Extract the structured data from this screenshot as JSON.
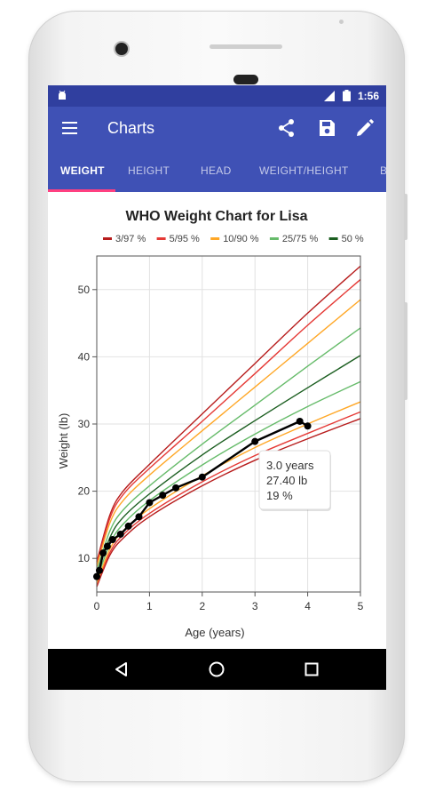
{
  "statusbar": {
    "time": "1:56"
  },
  "appbar": {
    "title": "Charts"
  },
  "tabs": [
    {
      "label": "WEIGHT",
      "active": true
    },
    {
      "label": "HEIGHT",
      "active": false
    },
    {
      "label": "HEAD",
      "active": false
    },
    {
      "label": "WEIGHT/HEIGHT",
      "active": false
    },
    {
      "label": "B",
      "active": false
    }
  ],
  "icons": {
    "menu": "menu-icon",
    "share": "share-icon",
    "save": "save-icon",
    "edit": "edit-icon",
    "back": "back-icon",
    "home": "home-icon",
    "recents": "recents-icon"
  },
  "colors": {
    "statusbar": "#303F9F",
    "appbar": "#3F51B5",
    "accent": "#FF4081",
    "p3_97": "#b71c1c",
    "p5_95": "#e53935",
    "p10_90": "#ffa726",
    "p25_75": "#66bb6a",
    "p50": "#1b5e20"
  },
  "chart_data": {
    "type": "line",
    "title": "WHO Weight Chart for Lisa",
    "xlabel": "Age (years)",
    "ylabel": "Weight (lb)",
    "xlim": [
      0,
      5
    ],
    "ylim": [
      5,
      55
    ],
    "xticks": [
      0,
      1,
      2,
      3,
      4,
      5
    ],
    "yticks": [
      10,
      20,
      30,
      40,
      50
    ],
    "grid": true,
    "legend_position": "top",
    "legend": [
      {
        "label": "3/97 %",
        "color": "#b71c1c"
      },
      {
        "label": "5/95 %",
        "color": "#e53935"
      },
      {
        "label": "10/90 %",
        "color": "#ffa726"
      },
      {
        "label": "25/75 %",
        "color": "#66bb6a"
      },
      {
        "label": "50 %",
        "color": "#1b5e20"
      }
    ],
    "percentile_curves": [
      {
        "group": "3/97 %",
        "color": "#b71c1c",
        "x": [
          0,
          0.25,
          0.5,
          1,
          2,
          3,
          4,
          5
        ],
        "y": [
          9.5,
          16.5,
          20.0,
          24.0,
          31.5,
          39.0,
          46.5,
          53.5
        ]
      },
      {
        "group": "3/97 %",
        "color": "#b71c1c",
        "x": [
          0,
          0.25,
          0.5,
          1,
          2,
          3,
          4,
          5
        ],
        "y": [
          5.8,
          10.5,
          13.0,
          16.2,
          20.8,
          24.6,
          27.8,
          30.8
        ]
      },
      {
        "group": "5/95 %",
        "color": "#e53935",
        "x": [
          0,
          0.25,
          0.5,
          1,
          2,
          3,
          4,
          5
        ],
        "y": [
          9.2,
          16.0,
          19.5,
          23.4,
          30.4,
          37.5,
          44.7,
          51.5
        ]
      },
      {
        "group": "5/95 %",
        "color": "#e53935",
        "x": [
          0,
          0.25,
          0.5,
          1,
          2,
          3,
          4,
          5
        ],
        "y": [
          6.0,
          10.9,
          13.5,
          16.7,
          21.4,
          25.3,
          28.6,
          31.8
        ]
      },
      {
        "group": "10/90 %",
        "color": "#ffa726",
        "x": [
          0,
          0.25,
          0.5,
          1,
          2,
          3,
          4,
          5
        ],
        "y": [
          8.8,
          15.3,
          18.6,
          22.4,
          29.0,
          35.5,
          42.0,
          48.5
        ]
      },
      {
        "group": "10/90 %",
        "color": "#ffa726",
        "x": [
          0,
          0.25,
          0.5,
          1,
          2,
          3,
          4,
          5
        ],
        "y": [
          6.3,
          11.4,
          14.1,
          17.4,
          22.3,
          26.5,
          30.0,
          33.3
        ]
      },
      {
        "group": "25/75 %",
        "color": "#66bb6a",
        "x": [
          0,
          0.25,
          0.5,
          1,
          2,
          3,
          4,
          5
        ],
        "y": [
          8.1,
          14.1,
          17.2,
          20.8,
          27.0,
          32.8,
          38.6,
          44.3
        ]
      },
      {
        "group": "25/75 %",
        "color": "#66bb6a",
        "x": [
          0,
          0.25,
          0.5,
          1,
          2,
          3,
          4,
          5
        ],
        "y": [
          6.8,
          12.2,
          15.1,
          18.6,
          23.9,
          28.5,
          32.6,
          36.3
        ]
      },
      {
        "group": "50 %",
        "color": "#1b5e20",
        "x": [
          0,
          0.25,
          0.5,
          1,
          2,
          3,
          4,
          5
        ],
        "y": [
          7.4,
          13.1,
          16.1,
          19.6,
          25.4,
          30.5,
          35.4,
          40.2
        ]
      }
    ],
    "series": [
      {
        "x": [
          0.0,
          0.05,
          0.12,
          0.2,
          0.3,
          0.45,
          0.6,
          0.8,
          1.0,
          1.25,
          1.5,
          2.0,
          3.0,
          3.85,
          4.0
        ],
        "y": [
          7.3,
          8.2,
          10.8,
          11.8,
          12.8,
          13.6,
          14.8,
          16.2,
          18.3,
          19.4,
          20.5,
          22.1,
          27.4,
          30.4,
          29.7
        ]
      }
    ],
    "tooltip": {
      "x": 3.0,
      "line1": "3.0 years",
      "line2": "27.40 lb",
      "line3": "19 %"
    }
  }
}
